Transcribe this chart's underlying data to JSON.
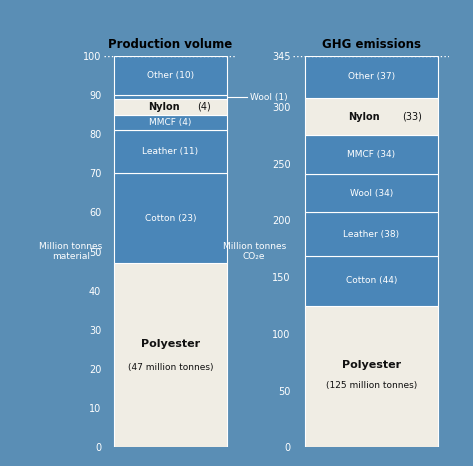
{
  "background_color": "#5a8eb5",
  "left_bar": {
    "title": "Production volume",
    "ylabel": "Million tonnes\nmaterial",
    "ylim": [
      0,
      100
    ],
    "yticks": [
      0,
      10,
      20,
      30,
      40,
      50,
      60,
      70,
      80,
      90,
      100
    ],
    "segments": [
      {
        "label": "Polyester",
        "value": 47,
        "color": "#f0ede4",
        "bold": true,
        "subtext": "(47 million tonnes)"
      },
      {
        "label": "Cotton (23)",
        "value": 23,
        "color": "#4a86b8",
        "bold": false
      },
      {
        "label": "Leather (11)",
        "value": 11,
        "color": "#4a86b8",
        "bold": false
      },
      {
        "label": "MMCF (4)",
        "value": 4,
        "color": "#4a86b8",
        "bold": false
      },
      {
        "label": "Nylon (4)",
        "value": 4,
        "color": "#f0ede4",
        "bold": true
      },
      {
        "label": "Wool (1)",
        "value": 1,
        "color": "#4a86b8",
        "bold": false,
        "outside": true
      },
      {
        "label": "Other (10)",
        "value": 10,
        "color": "#4a86b8",
        "bold": false
      }
    ]
  },
  "right_bar": {
    "title": "GHG emissions",
    "ylabel": "Million tonnes\nCO₂e",
    "ylim": [
      0,
      345
    ],
    "yticks": [
      0,
      50,
      100,
      150,
      200,
      250,
      300,
      345
    ],
    "segments": [
      {
        "label": "Polyester",
        "value": 125,
        "color": "#f0ede4",
        "bold": true,
        "subtext": "(125 million tonnes)"
      },
      {
        "label": "Cotton (44)",
        "value": 44,
        "color": "#4a86b8",
        "bold": false
      },
      {
        "label": "Leather (38)",
        "value": 38,
        "color": "#4a86b8",
        "bold": false
      },
      {
        "label": "Wool (34)",
        "value": 34,
        "color": "#4a86b8",
        "bold": false
      },
      {
        "label": "MMCF (34)",
        "value": 34,
        "color": "#4a86b8",
        "bold": false
      },
      {
        "label": "Nylon (33)",
        "value": 33,
        "color": "#f0ede4",
        "bold": true
      },
      {
        "label": "Other (37)",
        "value": 37,
        "color": "#4a86b8",
        "bold": false
      }
    ]
  },
  "bar_edge_color": "#ffffff",
  "bar_linewidth": 0.8,
  "text_dark": "#111111",
  "text_light": "#ffffff"
}
